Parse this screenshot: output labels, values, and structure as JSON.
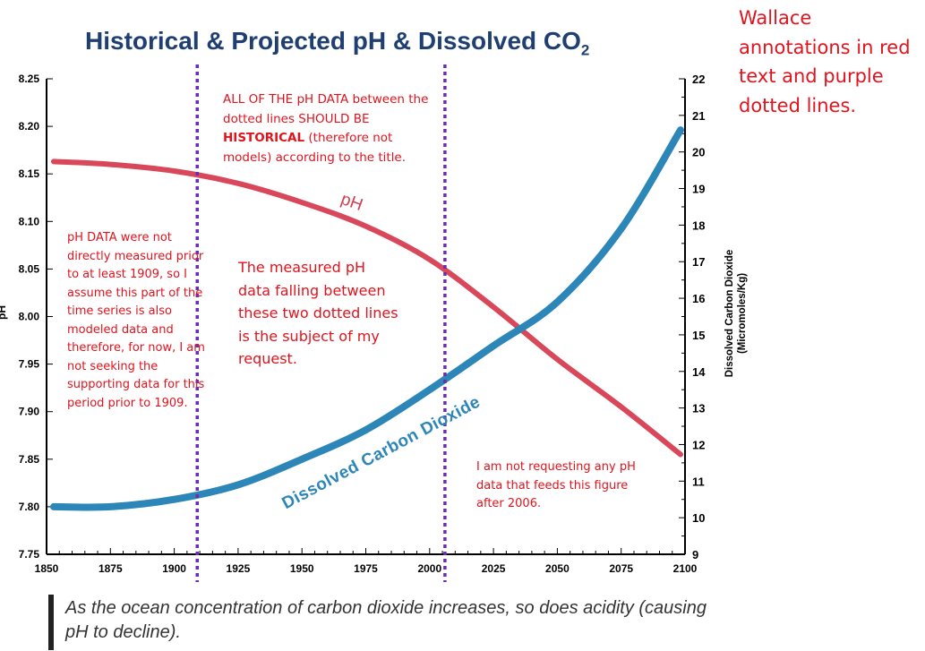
{
  "title": {
    "main": "Historical & Projected pH & Dissolved CO",
    "sub": "2"
  },
  "annotations": {
    "wallace": "Wallace annotations in red text and purple dotted lines.",
    "historical_pre": "ALL OF THE pH DATA between the dotted lines SHOULD BE ",
    "historical_bold": "HISTORICAL",
    "historical_post": " (therefore not models) according to the title.",
    "pre1909": "pH DATA  were not directly measured prior to at least 1909, so I assume this part of the time series is also modeled data and therefore, for now, I am not seeking the supporting data for this period prior to 1909.",
    "subject": "The measured pH data falling between these two dotted lines is the subject of my request.",
    "post2006": "I am not requesting any pH data that feeds this figure after 2006."
  },
  "caption": "As the ocean concentration of carbon dioxide increases, so does acidity (causing pH to decline).",
  "chart_data": {
    "type": "line",
    "title": "Historical & Projected pH & Dissolved CO₂",
    "x": [
      1850,
      1875,
      1900,
      1925,
      1950,
      1975,
      2000,
      2025,
      2050,
      2075,
      2100
    ],
    "xticks": [
      "1850",
      "1875",
      "1900",
      "1925",
      "1950",
      "1975",
      "2000",
      "2025",
      "2050",
      "2075",
      "2100"
    ],
    "xlim": [
      1850,
      2100
    ],
    "y_left": {
      "label": "pH",
      "lim": [
        7.75,
        8.25
      ],
      "ticks": [
        "7.75",
        "7.80",
        "7.85",
        "7.90",
        "7.95",
        "8.00",
        "8.05",
        "8.10",
        "8.15",
        "8.20",
        "8.25"
      ]
    },
    "y_right": {
      "label_line1": "Dissolved Carbon Dioxide",
      "label_line2": "(Micromoles/Kg)",
      "lim": [
        9,
        22
      ],
      "ticks": [
        "9",
        "10",
        "11",
        "12",
        "13",
        "14",
        "15",
        "16",
        "17",
        "18",
        "19",
        "20",
        "21",
        "22"
      ]
    },
    "series": [
      {
        "name": "pH",
        "axis": "left",
        "color": "#d8485a",
        "values": [
          8.163,
          8.16,
          8.153,
          8.14,
          8.12,
          8.095,
          8.06,
          8.01,
          7.955,
          7.905,
          7.855
        ]
      },
      {
        "name": "Dissolved Carbon Dioxide",
        "axis": "right",
        "color": "#2c86b8",
        "values": [
          10.3,
          10.3,
          10.5,
          10.9,
          11.6,
          12.4,
          13.5,
          14.7,
          15.9,
          17.9,
          20.6
        ]
      }
    ],
    "vlines": [
      1909,
      2006
    ],
    "vline_color": "#6a2cb0",
    "grid": false,
    "legend": "none"
  }
}
